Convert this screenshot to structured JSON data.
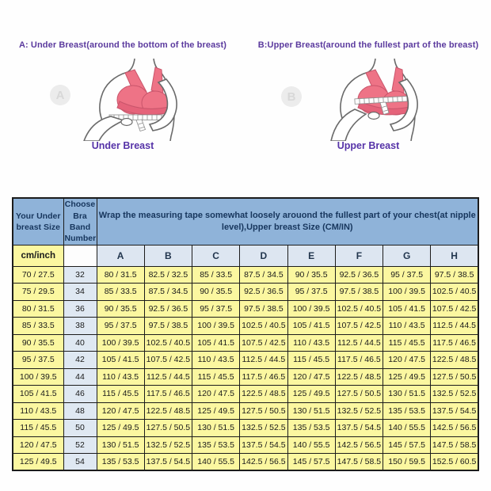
{
  "figures": {
    "left": {
      "title": "A: Under Breast(around the bottom of the breast)",
      "caption": "Under Breast",
      "watermark": "A"
    },
    "right": {
      "title": "B:Upper Breast(around the fullest part of the breast)",
      "caption": "Upper Breast",
      "watermark": "B"
    }
  },
  "table": {
    "col1_header": "Your Under breast Size",
    "col2_header": "Choose Bra Band Number",
    "span_header": "Wrap the measuring tape somewhat loosely arouond the fullest part of your chest(at nipple level),Upper breast Size (CM/IN)",
    "unit_label": "cm/inch",
    "cup_letters": [
      "A",
      "B",
      "C",
      "D",
      "E",
      "F",
      "G",
      "H"
    ],
    "rows": [
      {
        "under": "70 / 27.5",
        "band": "32",
        "cells": [
          "80 / 31.5",
          "82.5 / 32.5",
          "85 / 33.5",
          "87.5 / 34.5",
          "90 / 35.5",
          "92.5 / 36.5",
          "95 / 37.5",
          "97.5 / 38.5"
        ]
      },
      {
        "under": "75 / 29.5",
        "band": "34",
        "cells": [
          "85 / 33.5",
          "87.5 / 34.5",
          "90 / 35.5",
          "92.5 / 36.5",
          "95 / 37.5",
          "97.5 / 38.5",
          "100 / 39.5",
          "102.5 / 40.5"
        ]
      },
      {
        "under": "80 / 31.5",
        "band": "36",
        "cells": [
          "90 / 35.5",
          "92.5 / 36.5",
          "95 / 37.5",
          "97.5 / 38.5",
          "100 / 39.5",
          "102.5 / 40.5",
          "105 / 41.5",
          "107.5 / 42.5"
        ]
      },
      {
        "under": "85 / 33.5",
        "band": "38",
        "cells": [
          "95 / 37.5",
          "97.5 / 38.5",
          "100 / 39.5",
          "102.5 / 40.5",
          "105 / 41.5",
          "107.5 / 42.5",
          "110 / 43.5",
          "112.5 / 44.5"
        ]
      },
      {
        "under": "90 / 35.5",
        "band": "40",
        "cells": [
          "100 / 39.5",
          "102.5 / 40.5",
          "105 / 41.5",
          "107.5 / 42.5",
          "110 / 43.5",
          "112.5 / 44.5",
          "115 / 45.5",
          "117.5 / 46.5"
        ]
      },
      {
        "under": "95 / 37.5",
        "band": "42",
        "cells": [
          "105 / 41.5",
          "107.5 / 42.5",
          "110 / 43.5",
          "112.5 / 44.5",
          "115 / 45.5",
          "117.5 / 46.5",
          "120 / 47.5",
          "122.5 / 48.5"
        ]
      },
      {
        "under": "100 / 39.5",
        "band": "44",
        "cells": [
          "110 / 43.5",
          "112.5 / 44.5",
          "115 / 45.5",
          "117.5 / 46.5",
          "120 / 47.5",
          "122.5 / 48.5",
          "125 / 49.5",
          "127.5 / 50.5"
        ]
      },
      {
        "under": "105 / 41.5",
        "band": "46",
        "cells": [
          "115 / 45.5",
          "117.5 / 46.5",
          "120 / 47.5",
          "122.5 / 48.5",
          "125 / 49.5",
          "127.5 / 50.5",
          "130 / 51.5",
          "132.5 / 52.5"
        ]
      },
      {
        "under": "110 / 43.5",
        "band": "48",
        "cells": [
          "120 / 47.5",
          "122.5 / 48.5",
          "125 / 49.5",
          "127.5 / 50.5",
          "130 / 51.5",
          "132.5 / 52.5",
          "135 / 53.5",
          "137.5 / 54.5"
        ]
      },
      {
        "under": "115 / 45.5",
        "band": "50",
        "cells": [
          "125 / 49.5",
          "127.5 / 50.5",
          "130 / 51.5",
          "132.5 / 52.5",
          "135 / 53.5",
          "137.5 / 54.5",
          "140 / 55.5",
          "142.5 / 56.5"
        ]
      },
      {
        "under": "120 / 47.5",
        "band": "52",
        "cells": [
          "130 / 51.5",
          "132.5 / 52.5",
          "135 / 53.5",
          "137.5 / 54.5",
          "140 / 55.5",
          "142.5 / 56.5",
          "145 / 57.5",
          "147.5 / 58.5"
        ]
      },
      {
        "under": "125 / 49.5",
        "band": "54",
        "cells": [
          "135 / 53.5",
          "137.5 / 54.5",
          "140 / 55.5",
          "142.5 / 56.5",
          "145 / 57.5",
          "147.5 / 58.5",
          "150 / 59.5",
          "152.5 / 60.5"
        ]
      }
    ]
  },
  "colors": {
    "title_purple": "#5b3a9e",
    "header_blue": "#8fb3d9",
    "cell_yellow": "#fbf7a0",
    "band_blue": "#dfe8f2",
    "letters_blue": "#dde6f1",
    "bra_pink": "#ee7386",
    "border": "#1c1c1c"
  }
}
